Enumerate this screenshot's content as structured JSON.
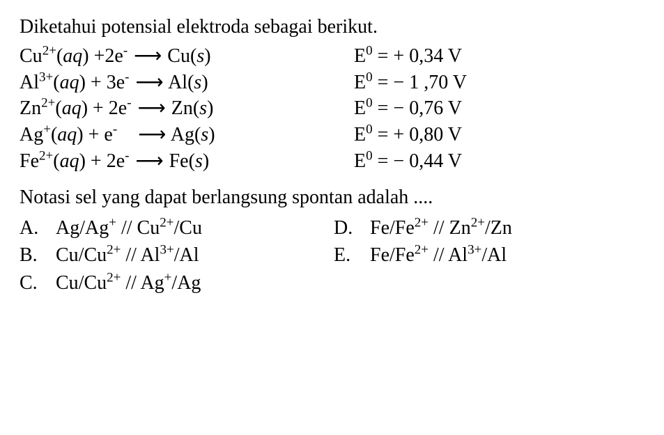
{
  "intro": "Diketahui potensial elektroda sebagai berikut.",
  "equations": [
    {
      "reactant_ion": "Cu",
      "reactant_charge": "2+",
      "phase_r": "aq",
      "e_coef": "+2e",
      "product": "Cu",
      "phase_p": "s",
      "e0_label": "E",
      "e0_sup": "0",
      "e0_value": "= + 0,34 V"
    },
    {
      "reactant_ion": "Al",
      "reactant_charge": "3+",
      "phase_r": "aq",
      "e_coef": "+ 3e",
      "product": "Al",
      "phase_p": "s",
      "e0_label": "E",
      "e0_sup": "0",
      "e0_value": "= − 1 ,70 V"
    },
    {
      "reactant_ion": "Zn",
      "reactant_charge": "2+",
      "phase_r": "aq",
      "e_coef": "+ 2e",
      "product": "Zn",
      "phase_p": "s",
      "e0_label": "E",
      "e0_sup": "0",
      "e0_value": "= − 0,76 V"
    },
    {
      "reactant_ion": "Ag",
      "reactant_charge": "+",
      "phase_r": "aq",
      "e_coef": "+ e",
      "product": "Ag",
      "phase_p": "s",
      "e0_label": "E",
      "e0_sup": "0",
      "e0_value": "= + 0,80 V"
    },
    {
      "reactant_ion": "Fe",
      "reactant_charge": "2+",
      "phase_r": "aq",
      "e_coef": "+ 2e",
      "product": "Fe",
      "phase_p": "s",
      "e0_label": "E",
      "e0_sup": "0",
      "e0_value": "= − 0,44 V"
    }
  ],
  "question": "Notasi sel yang dapat berlangsung spontan adalah ....",
  "options": {
    "A": {
      "letter": "A.",
      "a1": "Ag",
      "s1": "",
      "a2": "Ag",
      "s2": "+",
      "sep": "//",
      "a3": "Cu",
      "s3": "2+",
      "a4": "Cu",
      "s4": ""
    },
    "B": {
      "letter": "B.",
      "a1": "Cu",
      "s1": "",
      "a2": "Cu",
      "s2": "2+",
      "sep": "//",
      "a3": "Al",
      "s3": "3+",
      "a4": "Al",
      "s4": ""
    },
    "C": {
      "letter": "C.",
      "a1": "Cu",
      "s1": "",
      "a2": "Cu",
      "s2": "2+",
      "sep": "//",
      "a3": "Ag",
      "s3": "+",
      "a4": "Ag",
      "s4": ""
    },
    "D": {
      "letter": "D.",
      "a1": "Fe",
      "s1": "",
      "a2": "Fe",
      "s2": "2+",
      "sep": "//",
      "a3": "Zn",
      "s3": "2+",
      "a4": "Zn",
      "s4": ""
    },
    "E": {
      "letter": "E.",
      "a1": "Fe",
      "s1": "",
      "a2": "Fe",
      "s2": "2+",
      "sep": "//",
      "a3": "Al",
      "s3": "3+",
      "a4": "Al",
      "s4": ""
    }
  },
  "glyphs": {
    "arrow": "⟶",
    "minus_sup": "-",
    "slash": "/",
    "italic_open": "(",
    "italic_close": ")"
  }
}
